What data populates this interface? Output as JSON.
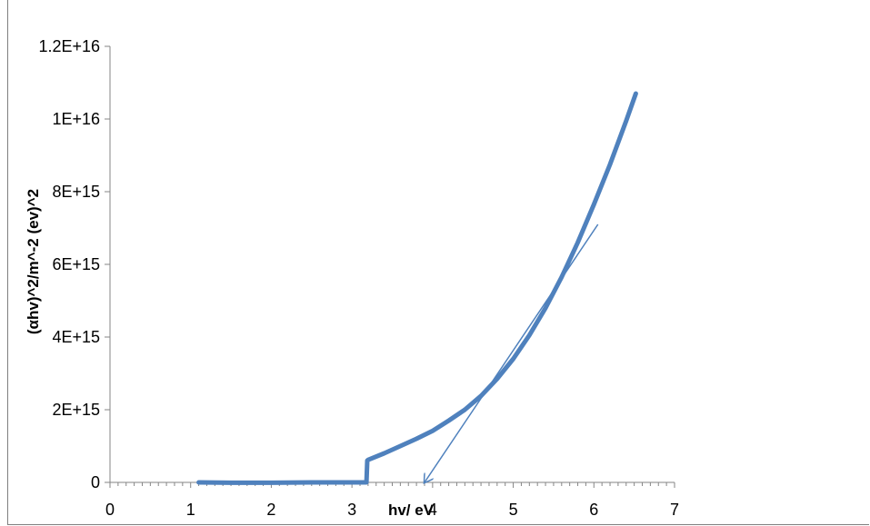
{
  "chart_data": {
    "type": "line",
    "title": "",
    "xlabel": "hv/ eV",
    "ylabel": "(αhv)^2/m^-2 (ev)^2",
    "xlim": [
      0,
      7
    ],
    "ylim": [
      0,
      1.2e+16
    ],
    "x_ticks": [
      0,
      1,
      2,
      3,
      4,
      5,
      6,
      7
    ],
    "y_ticks": [
      0,
      2000000000000000.0,
      4000000000000000.0,
      6000000000000000.0,
      8000000000000000.0,
      1e+16,
      1.2e+16
    ],
    "y_tick_labels": [
      "0",
      "2E+15",
      "4E+15",
      "6E+15",
      "8E+15",
      "1E+16",
      "1.2E+16"
    ],
    "series_color": "#4F81BD",
    "series": [
      {
        "x": [
          1.1,
          1.5,
          2.0,
          2.5,
          2.9,
          3.18,
          3.19,
          3.2,
          3.4,
          3.6,
          3.8,
          4.0,
          4.2,
          4.4,
          4.6,
          4.8,
          5.0,
          5.2,
          5.4,
          5.6,
          5.8,
          6.0,
          6.2,
          6.4,
          6.52
        ],
        "y": [
          0,
          -10000000000000.0,
          -10000000000000.0,
          0,
          0,
          0,
          600000000000000.0,
          620000000000000.0,
          800000000000000.0,
          1000000000000000.0,
          1200000000000000.0,
          1420000000000000.0,
          1700000000000000.0,
          2000000000000000.0,
          2380000000000000.0,
          2850000000000000.0,
          3400000000000000.0,
          4050000000000000.0,
          4800000000000000.0,
          5650000000000000.0,
          6600000000000000.0,
          7650000000000000.0,
          8750000000000000.0,
          9950000000000000.0,
          1.07e+16
        ]
      }
    ],
    "annotation": {
      "type": "tangent-arrow",
      "from": [
        6.05,
        7100000000000000.0
      ],
      "to": [
        3.9,
        0
      ]
    },
    "grid": false,
    "legend": "none"
  }
}
